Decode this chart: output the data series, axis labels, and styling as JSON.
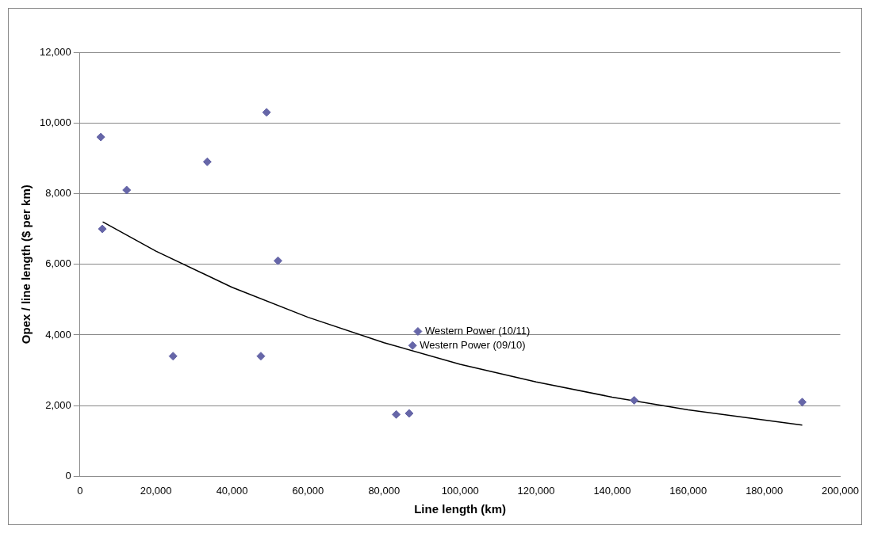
{
  "chart_data": {
    "type": "scatter",
    "xlabel": "Line length (km)",
    "ylabel": "Opex / line length ($ per km)",
    "xlim": [
      0,
      200000
    ],
    "xticks": [
      {
        "value": 0,
        "label": "0"
      },
      {
        "value": 20000,
        "label": "20,000"
      },
      {
        "value": 40000,
        "label": "40,000"
      },
      {
        "value": 60000,
        "label": "60,000"
      },
      {
        "value": 80000,
        "label": "80,000"
      },
      {
        "value": 100000,
        "label": "100,000"
      },
      {
        "value": 120000,
        "label": "120,000"
      },
      {
        "value": 140000,
        "label": "140,000"
      },
      {
        "value": 160000,
        "label": "160,000"
      },
      {
        "value": 180000,
        "label": "180,000"
      },
      {
        "value": 200000,
        "label": "200,000"
      }
    ],
    "ylim": [
      0,
      12000
    ],
    "yticks": [
      {
        "value": 0,
        "label": "0"
      },
      {
        "value": 2000,
        "label": "2,000"
      },
      {
        "value": 4000,
        "label": "4,000"
      },
      {
        "value": 6000,
        "label": "6,000"
      },
      {
        "value": 8000,
        "label": "8,000"
      },
      {
        "value": 10000,
        "label": "10,000"
      },
      {
        "value": 12000,
        "label": "12,000"
      }
    ],
    "grid": "y",
    "legend": false,
    "marker": "diamond",
    "series": [
      {
        "color": "#6666a8",
        "x": [
          5500,
          5900,
          12300,
          24500,
          33500,
          49100,
          47600,
          52100,
          83200,
          86600,
          87500,
          88900,
          145800,
          190000
        ],
        "values": [
          9600,
          7000,
          8100,
          3400,
          8900,
          10300,
          3400,
          6100,
          1750,
          1780,
          3700,
          4100,
          2150,
          2100
        ]
      },
      {
        "type": "line",
        "color": "#000000",
        "marker": "none",
        "x": [
          6000,
          20000,
          40000,
          60000,
          80000,
          100000,
          120000,
          140000,
          160000,
          190000
        ],
        "values": [
          7200,
          6370,
          5350,
          4500,
          3780,
          3170,
          2670,
          2240,
          1880,
          1450
        ]
      }
    ],
    "annotations": [
      {
        "text": "Western Power (10/11)",
        "x": 88900,
        "y": 4100
      },
      {
        "text": "Western Power (09/10)",
        "x": 87500,
        "y": 3700
      }
    ]
  }
}
